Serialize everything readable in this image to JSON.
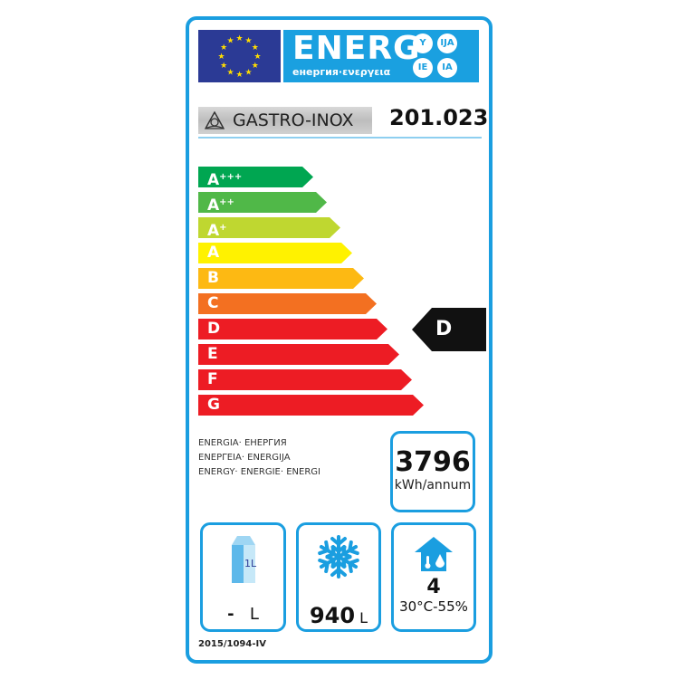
{
  "header": {
    "energ": "ENERG",
    "subtitle": "енергия·ενεργεια",
    "suffixes": [
      "Y",
      "IJA",
      "IE",
      "IA"
    ]
  },
  "supplier": {
    "brand": "GASTRO-INOX",
    "model": "201.023"
  },
  "scale": [
    {
      "label": "A",
      "sup": "+++",
      "color": "#00a651"
    },
    {
      "label": "A",
      "sup": "++",
      "color": "#50b848"
    },
    {
      "label": "A",
      "sup": "+",
      "color": "#bfd730"
    },
    {
      "label": "A",
      "sup": "",
      "color": "#fff200"
    },
    {
      "label": "B",
      "sup": "",
      "color": "#fdb913"
    },
    {
      "label": "C",
      "sup": "",
      "color": "#f37021"
    },
    {
      "label": "D",
      "sup": "",
      "color": "#ed1c24"
    },
    {
      "label": "E",
      "sup": "",
      "color": "#ed1c24"
    },
    {
      "label": "F",
      "sup": "",
      "color": "#ed1c24"
    },
    {
      "label": "G",
      "sup": "",
      "color": "#ed1c24"
    }
  ],
  "rating": {
    "class": "D"
  },
  "energy_words": [
    "ENERGIA· ЕНЕРГИЯ",
    "ΕΝΕΡΓΕΙΑ· ENERGIJA",
    "ENERGY· ENERGIE· ENERGI"
  ],
  "consumption": {
    "value": "3796",
    "unit": "kWh/annum"
  },
  "chilled": {
    "icon_text": "1L",
    "value": "-",
    "unit": "L"
  },
  "frozen": {
    "value": "940",
    "unit": "L"
  },
  "climate": {
    "class": "4",
    "range": "30°C-55%"
  },
  "regulation": "2015/1094-IV"
}
